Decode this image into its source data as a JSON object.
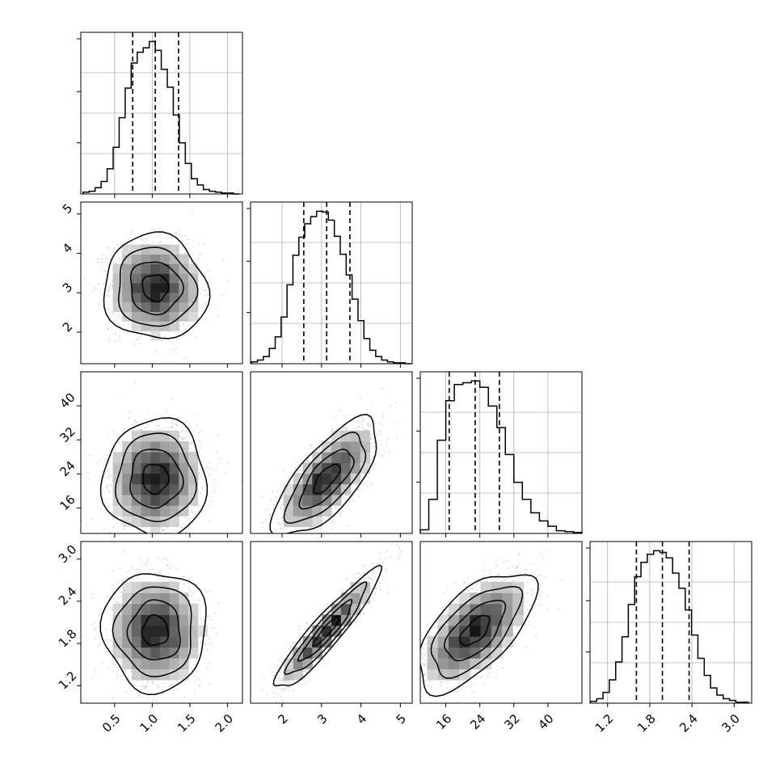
{
  "chart_data": {
    "type": "corner",
    "parameters": [
      {
        "ticks": [
          0.5,
          1.0,
          1.5,
          2.0
        ],
        "tick_labels": [
          "0.5",
          "1.0",
          "1.5",
          "2.0"
        ],
        "range": [
          0.05,
          2.2
        ],
        "quantiles": [
          0.74,
          1.04,
          1.35
        ],
        "hist_centers": [
          0.12,
          0.2,
          0.28,
          0.36,
          0.44,
          0.52,
          0.6,
          0.68,
          0.76,
          0.84,
          0.92,
          1.0,
          1.08,
          1.16,
          1.24,
          1.32,
          1.4,
          1.48,
          1.56,
          1.64,
          1.72,
          1.8,
          1.88,
          1.96,
          2.04,
          2.12
        ],
        "hist_counts": [
          2,
          3,
          7,
          14,
          28,
          52,
          85,
          118,
          146,
          158,
          163,
          170,
          160,
          139,
          119,
          88,
          57,
          34,
          17,
          10,
          5,
          3,
          2,
          1,
          1,
          0
        ]
      },
      {
        "ticks": [
          2,
          3,
          4,
          5
        ],
        "tick_labels": [
          "2",
          "3",
          "4",
          "5"
        ],
        "range": [
          1.2,
          5.3
        ],
        "quantiles": [
          2.55,
          3.13,
          3.72
        ],
        "hist_centers": [
          1.3,
          1.45,
          1.6,
          1.75,
          1.9,
          2.05,
          2.2,
          2.35,
          2.5,
          2.65,
          2.8,
          2.95,
          3.1,
          3.25,
          3.4,
          3.55,
          3.7,
          3.85,
          4.0,
          4.15,
          4.3,
          4.45,
          4.6,
          4.75,
          4.9,
          5.05,
          5.2
        ],
        "hist_counts": [
          2,
          4,
          8,
          17,
          30,
          52,
          88,
          121,
          141,
          156,
          164,
          170,
          169,
          160,
          142,
          122,
          99,
          72,
          48,
          28,
          15,
          8,
          4,
          2,
          1,
          1,
          0
        ]
      },
      {
        "ticks": [
          16,
          24,
          32,
          40
        ],
        "tick_labels": [
          "16",
          "24",
          "32",
          "40"
        ],
        "range": [
          10,
          48
        ],
        "quantiles": [
          16.8,
          22.9,
          28.6
        ],
        "hist_centers": [
          11,
          13,
          15,
          17,
          19,
          21,
          23,
          25,
          27,
          29,
          31,
          33,
          35,
          37,
          39,
          41,
          43,
          45,
          47
        ],
        "hist_counts": [
          4,
          38,
          104,
          148,
          166,
          168,
          170,
          163,
          142,
          118,
          88,
          57,
          38,
          23,
          14,
          8,
          3,
          2,
          1
        ]
      },
      {
        "ticks": [
          1.2,
          1.8,
          2.4,
          3.0
        ],
        "tick_labels": [
          "1.2",
          "1.8",
          "2.4",
          "3.0"
        ],
        "range": [
          0.95,
          3.25
        ],
        "quantiles": [
          1.61,
          1.98,
          2.36
        ],
        "hist_centers": [
          1.0,
          1.09,
          1.18,
          1.27,
          1.36,
          1.45,
          1.54,
          1.63,
          1.72,
          1.81,
          1.9,
          1.99,
          2.08,
          2.17,
          2.26,
          2.35,
          2.44,
          2.53,
          2.62,
          2.71,
          2.8,
          2.89,
          2.98,
          3.07,
          3.16
        ],
        "hist_counts": [
          2,
          5,
          12,
          26,
          46,
          74,
          110,
          141,
          157,
          166,
          170,
          168,
          162,
          145,
          128,
          104,
          76,
          50,
          31,
          17,
          9,
          5,
          3,
          1,
          1
        ]
      }
    ],
    "pairs": [
      {
        "row": 1,
        "col": 0,
        "mean": [
          1.04,
          3.13
        ],
        "sd": [
          0.3,
          0.58
        ],
        "rho": -0.05
      },
      {
        "row": 2,
        "col": 0,
        "mean": [
          1.04,
          22.9
        ],
        "sd": [
          0.3,
          6.0
        ],
        "rho": 0.0
      },
      {
        "row": 2,
        "col": 1,
        "mean": [
          3.13,
          22.9
        ],
        "sd": [
          0.58,
          6.0
        ],
        "rho": 0.72
      },
      {
        "row": 3,
        "col": 0,
        "mean": [
          1.04,
          1.98
        ],
        "sd": [
          0.3,
          0.37
        ],
        "rho": 0.0
      },
      {
        "row": 3,
        "col": 1,
        "mean": [
          3.13,
          1.98
        ],
        "sd": [
          0.58,
          0.37
        ],
        "rho": 0.93
      },
      {
        "row": 3,
        "col": 2,
        "mean": [
          22.9,
          1.98
        ],
        "sd": [
          6.0,
          0.37
        ],
        "rho": 0.63
      }
    ],
    "contour_levels_sigma": [
      0.5,
      1.0,
      1.5,
      2.0
    ],
    "grid": true,
    "point_color": "#b0b0b0",
    "line_color": "#000000"
  }
}
